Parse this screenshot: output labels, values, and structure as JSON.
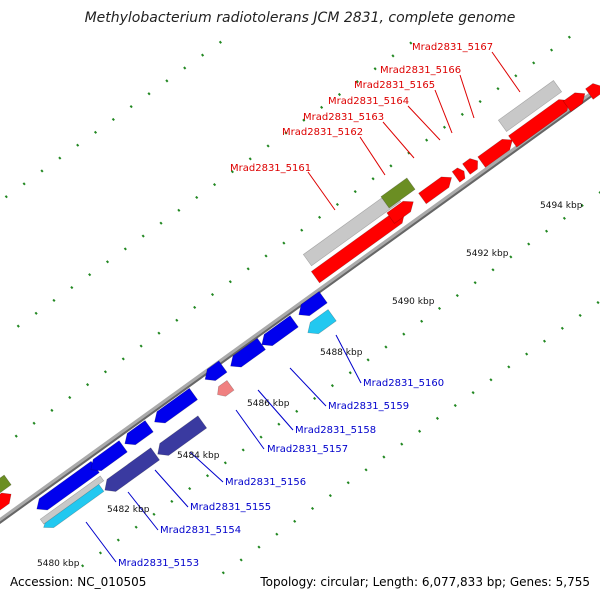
{
  "title": "Methylobacterium radiotolerans JCM 2831, complete genome",
  "footer": {
    "accession": "Accession: NC_010505",
    "topology": "Topology: circular; Length: 6,077,833 bp; Genes: 5,755"
  },
  "colors": {
    "backbone": "#777777",
    "tick": "#228822",
    "label_forward": "#dd0000",
    "label_reverse": "#0000cc",
    "gene_red": "#ff0000",
    "gene_blue": "#0000ee",
    "gene_navy": "#3a3aa0",
    "gene_gray": "#c8c8c8",
    "gene_olive": "#6b8e23",
    "gene_cyan": "#22c8f0",
    "gene_pink": "#f08080"
  },
  "kbp_labels": [
    "5480 kbp",
    "5482 kbp",
    "5484 kbp",
    "5486 kbp",
    "5488 kbp",
    "5490 kbp",
    "5492 kbp",
    "5494 kbp"
  ],
  "forward_labels": [
    "Mrad2831_5161",
    "Mrad2831_5162",
    "Mrad2831_5163",
    "Mrad2831_5164",
    "Mrad2831_5165",
    "Mrad2831_5166",
    "Mrad2831_5167"
  ],
  "reverse_labels": [
    "Mrad2831_5153",
    "Mrad2831_5154",
    "Mrad2831_5155",
    "Mrad2831_5156",
    "Mrad2831_5157",
    "Mrad2831_5158",
    "Mrad2831_5159",
    "Mrad2831_5160"
  ]
}
